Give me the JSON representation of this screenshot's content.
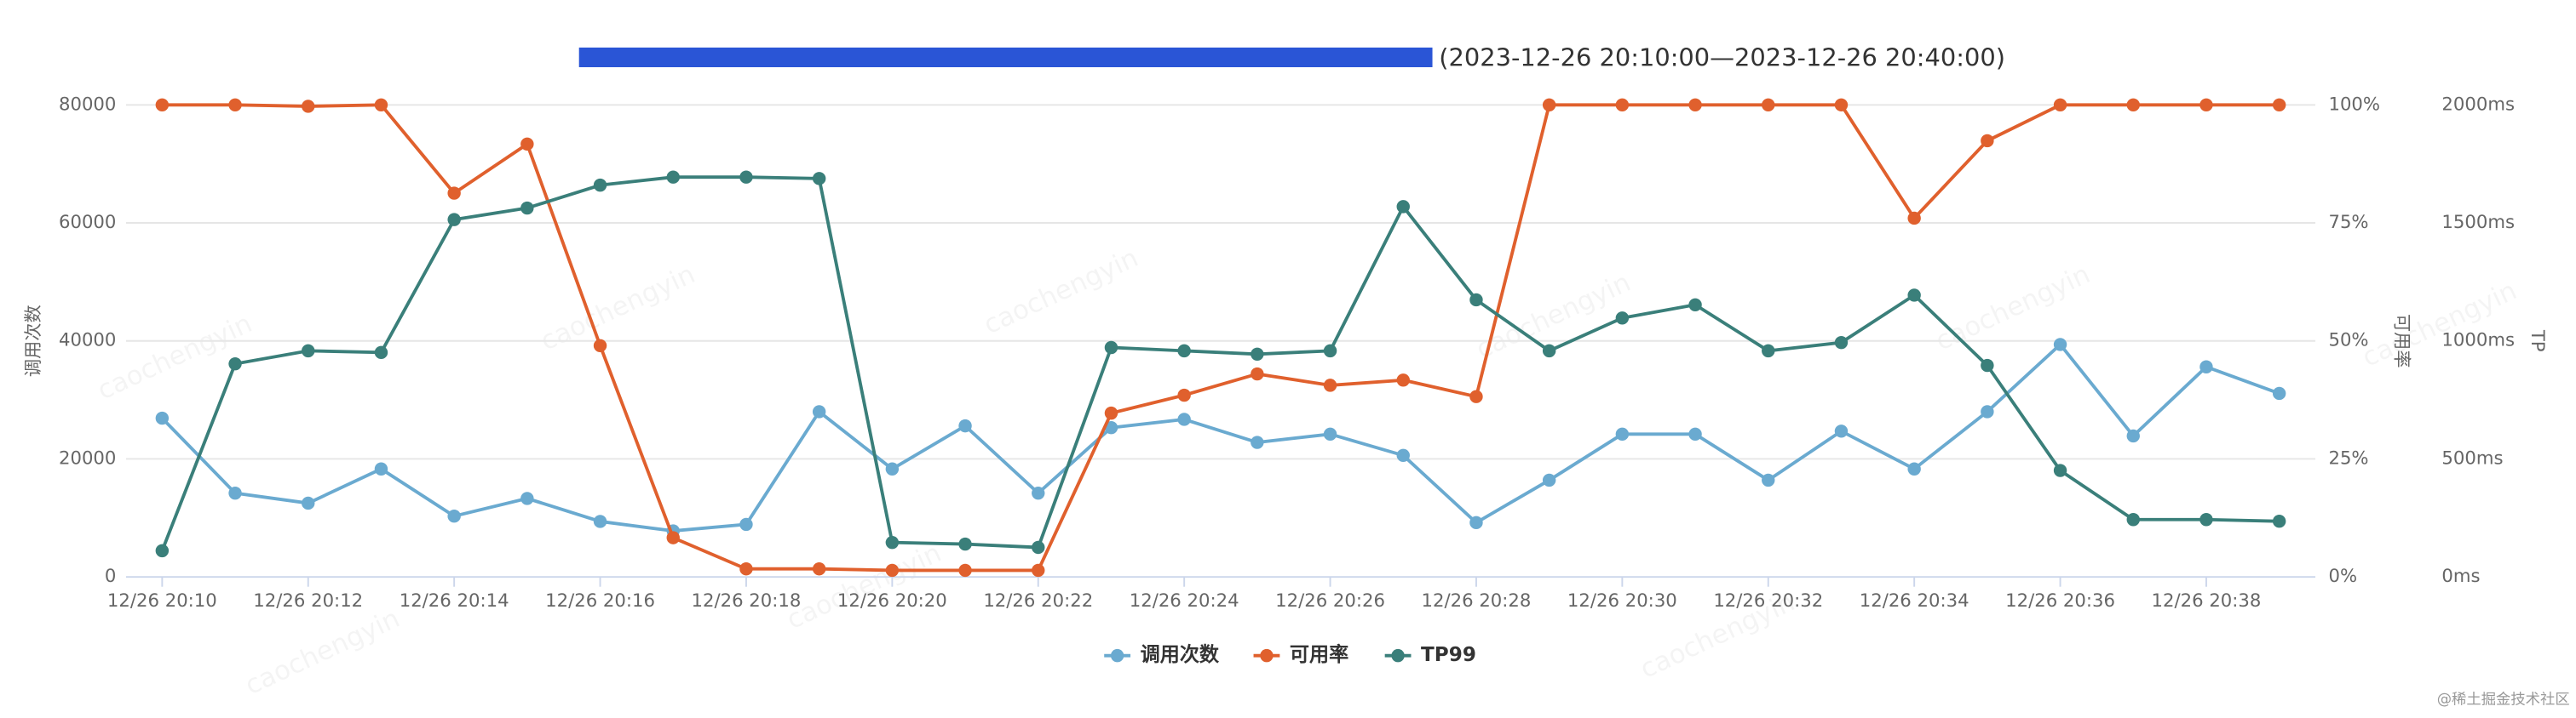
{
  "chart_data": {
    "type": "line",
    "title": "(2023-12-26 20:10:00—2023-12-26 20:40:00)",
    "watermark": "caochengyin",
    "footer": "@稀土掘金技术社区",
    "y_label": "调用次数",
    "y2_label": "可用率",
    "y3_label": "TP",
    "categories": [
      "12/26 20:10",
      null,
      "12/26 20:12",
      null,
      "12/26 20:14",
      null,
      "12/26 20:16",
      null,
      "12/26 20:18",
      null,
      "12/26 20:20",
      null,
      "12/26 20:22",
      null,
      "12/26 20:24",
      null,
      "12/26 20:26",
      null,
      "12/26 20:28",
      null,
      "12/26 20:30",
      null,
      "12/26 20:32",
      null,
      "12/26 20:34",
      null,
      "12/26 20:36",
      null,
      "12/26 20:38",
      null
    ],
    "ylim": [
      0,
      80000
    ],
    "yticks": [
      0,
      20000,
      40000,
      60000,
      80000
    ],
    "y2lim": [
      0,
      100
    ],
    "y2ticks": [
      {
        "value": 0,
        "label": "0%"
      },
      {
        "value": 25,
        "label": "25%"
      },
      {
        "value": 50,
        "label": "50%"
      },
      {
        "value": 75,
        "label": "75%"
      },
      {
        "value": 100,
        "label": "100%"
      }
    ],
    "y3lim": [
      0,
      2000
    ],
    "y3ticks": [
      {
        "value": 0,
        "label": "0ms"
      },
      {
        "value": 500,
        "label": "500ms"
      },
      {
        "value": 1000,
        "label": "1000ms"
      },
      {
        "value": 1500,
        "label": "1500ms"
      },
      {
        "value": 2000,
        "label": "2000ms"
      }
    ],
    "grid": true,
    "legend": "bottom",
    "series": [
      {
        "name": "调用次数",
        "color": "#6aaad0",
        "axis": "y",
        "values": [
          26900,
          14200,
          12500,
          18300,
          10300,
          13300,
          9400,
          7800,
          8900,
          28000,
          18300,
          25600,
          14200,
          25300,
          26700,
          22800,
          24200,
          20600,
          9200,
          16400,
          24200,
          24200,
          16400,
          24700,
          18300,
          28000,
          39400,
          23900,
          35600,
          31100
        ]
      },
      {
        "name": "可用率",
        "color": "#e0602d",
        "axis": "y2",
        "values": [
          100,
          100,
          99.7,
          100,
          81.3,
          91.7,
          49,
          8.3,
          1.7,
          1.7,
          1.4,
          1.4,
          1.4,
          34.7,
          38.5,
          43,
          40.6,
          41.7,
          38.2,
          100,
          100,
          100,
          100,
          100,
          76,
          92.4,
          100,
          100,
          100,
          100
        ]
      },
      {
        "name": "TP99",
        "color": "#3a7f7a",
        "axis": "y3",
        "values": [
          111,
          903,
          958,
          951,
          1514,
          1563,
          1660,
          1694,
          1694,
          1688,
          146,
          139,
          125,
          972,
          958,
          944,
          958,
          1569,
          1174,
          958,
          1097,
          1153,
          958,
          993,
          1194,
          896,
          451,
          243,
          243,
          236
        ]
      }
    ]
  }
}
